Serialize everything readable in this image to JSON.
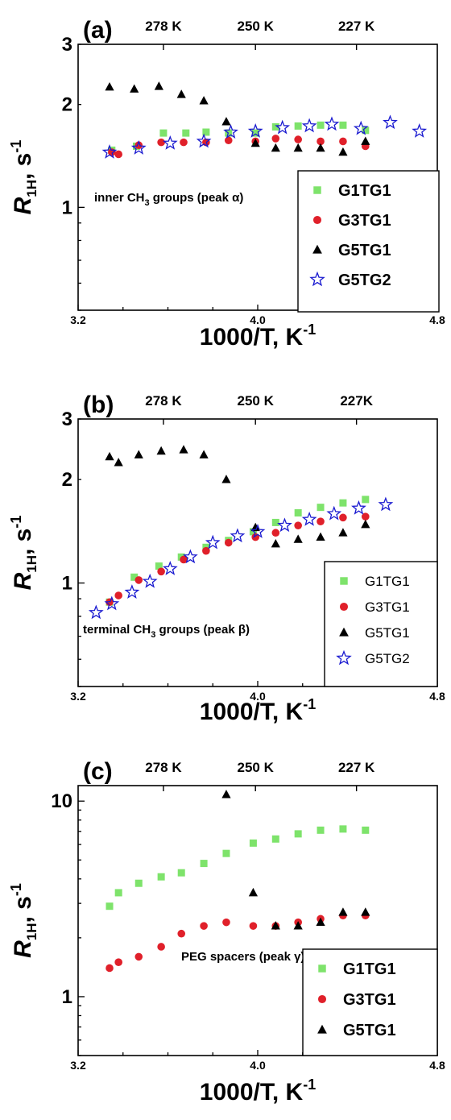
{
  "chart_data": [
    {
      "type": "scatter",
      "panel_label": "(a)",
      "top_ticks": [
        "278 K",
        "250 K",
        "227 K"
      ],
      "xlabel_main": "1000/T, K",
      "xlabel_sup": "-1",
      "ylabel_main": "R",
      "ylabel_sub": "1H",
      "ylabel_unit": ", s",
      "ylabel_sup": "-1",
      "xlim": [
        3.2,
        4.8
      ],
      "ylim": [
        0.5,
        3
      ],
      "yscale": "log",
      "xtick_labels": [
        "3.2",
        "4.0",
        "4.8"
      ],
      "ytick_labels": [
        "1",
        "2",
        "3"
      ],
      "annotation": "inner CH3 groups (peak α)",
      "annotation_pre": "inner CH",
      "annotation_sub": "3",
      "annotation_post": " groups (peak α)",
      "legend_position": "bottom-right",
      "series": [
        {
          "name": "G1TG1",
          "x": [
            3.35,
            3.46,
            3.58,
            3.68,
            3.77,
            3.87,
            3.99,
            4.08,
            4.18,
            4.28,
            4.38,
            4.48
          ],
          "y": [
            1.47,
            1.51,
            1.65,
            1.65,
            1.66,
            1.65,
            1.65,
            1.72,
            1.73,
            1.74,
            1.74,
            1.68
          ]
        },
        {
          "name": "G3TG1",
          "x": [
            3.35,
            3.38,
            3.47,
            3.57,
            3.67,
            3.77,
            3.87,
            3.99,
            4.08,
            4.18,
            4.28,
            4.38,
            4.48
          ],
          "y": [
            1.45,
            1.43,
            1.52,
            1.55,
            1.55,
            1.55,
            1.57,
            1.56,
            1.59,
            1.58,
            1.56,
            1.56,
            1.51
          ]
        },
        {
          "name": "G5TG1",
          "x": [
            3.34,
            3.45,
            3.56,
            3.66,
            3.76,
            3.86,
            3.99,
            4.08,
            4.18,
            4.28,
            4.38,
            4.48
          ],
          "y": [
            2.25,
            2.22,
            2.26,
            2.14,
            2.05,
            1.78,
            1.54,
            1.49,
            1.49,
            1.49,
            1.45,
            1.56
          ]
        },
        {
          "name": "G5TG2",
          "x": [
            3.34,
            3.47,
            3.61,
            3.76,
            3.88,
            3.99,
            4.11,
            4.23,
            4.33,
            4.46,
            4.59,
            4.72
          ],
          "y": [
            1.45,
            1.49,
            1.54,
            1.56,
            1.66,
            1.67,
            1.71,
            1.73,
            1.75,
            1.7,
            1.77,
            1.67
          ]
        }
      ]
    },
    {
      "type": "scatter",
      "panel_label": "(b)",
      "top_ticks": [
        "278 K",
        "250 K",
        "227K"
      ],
      "xlabel_main": "1000/T, K",
      "xlabel_sup": "-1",
      "ylabel_main": "R",
      "ylabel_sub": "1H",
      "ylabel_unit": ", s",
      "ylabel_sup": "-1",
      "xlim": [
        3.2,
        4.8
      ],
      "ylim": [
        0.5,
        3
      ],
      "yscale": "log",
      "xtick_labels": [
        "3.2",
        "4.0",
        "4.8"
      ],
      "ytick_labels": [
        "1",
        "2",
        "3"
      ],
      "annotation": "terminal CH3 groups (peak β)",
      "annotation_pre": "terminal CH",
      "annotation_sub": "3",
      "annotation_post": " groups (peak β)",
      "legend_position": "bottom-right",
      "series": [
        {
          "name": "G1TG1",
          "x": [
            3.34,
            3.45,
            3.56,
            3.66,
            3.77,
            3.87,
            3.98,
            4.08,
            4.18,
            4.28,
            4.38,
            4.48
          ],
          "y": [
            0.88,
            1.04,
            1.12,
            1.19,
            1.27,
            1.33,
            1.41,
            1.5,
            1.6,
            1.66,
            1.71,
            1.75
          ]
        },
        {
          "name": "G3TG1",
          "x": [
            3.34,
            3.38,
            3.47,
            3.57,
            3.67,
            3.77,
            3.87,
            3.99,
            4.08,
            4.18,
            4.28,
            4.38,
            4.48
          ],
          "y": [
            0.88,
            0.92,
            1.02,
            1.08,
            1.17,
            1.24,
            1.31,
            1.36,
            1.4,
            1.47,
            1.51,
            1.55,
            1.56
          ]
        },
        {
          "name": "G5TG1",
          "x": [
            3.34,
            3.38,
            3.47,
            3.57,
            3.67,
            3.76,
            3.86,
            3.99,
            4.08,
            4.18,
            4.28,
            4.38,
            4.48
          ],
          "y": [
            2.33,
            2.24,
            2.36,
            2.42,
            2.44,
            2.36,
            2.0,
            1.45,
            1.3,
            1.34,
            1.36,
            1.4,
            1.48
          ]
        },
        {
          "name": "G5TG2",
          "x": [
            3.28,
            3.35,
            3.44,
            3.52,
            3.61,
            3.7,
            3.8,
            3.91,
            4.0,
            4.12,
            4.23,
            4.34,
            4.45,
            4.57
          ],
          "y": [
            0.82,
            0.87,
            0.94,
            1.01,
            1.1,
            1.19,
            1.31,
            1.37,
            1.41,
            1.47,
            1.53,
            1.59,
            1.65,
            1.69
          ]
        }
      ]
    },
    {
      "type": "scatter",
      "panel_label": "(c)",
      "top_ticks": [
        "278 K",
        "250 K",
        "227 K"
      ],
      "xlabel_main": "1000/T, K",
      "xlabel_sup": "-1",
      "ylabel_main": "R",
      "ylabel_sub": "1H",
      "ylabel_unit": ", s",
      "ylabel_sup": "-1",
      "xlim": [
        3.2,
        4.8
      ],
      "ylim": [
        0.5,
        12
      ],
      "yscale": "log",
      "xtick_labels": [
        "3.2",
        "4.0",
        "4.8"
      ],
      "ytick_labels": [
        "1",
        "10"
      ],
      "annotation": "PEG spacers (peak γ)",
      "annotation_pre": "PEG spacers (peak γ)",
      "annotation_sub": "",
      "annotation_post": "",
      "legend_position": "bottom-right",
      "series": [
        {
          "name": "G1TG1",
          "x": [
            3.34,
            3.38,
            3.47,
            3.57,
            3.66,
            3.76,
            3.86,
            3.98,
            4.08,
            4.18,
            4.28,
            4.38,
            4.48
          ],
          "y": [
            2.9,
            3.4,
            3.8,
            4.1,
            4.3,
            4.8,
            5.4,
            6.1,
            6.4,
            6.8,
            7.1,
            7.2,
            7.1
          ]
        },
        {
          "name": "G3TG1",
          "x": [
            3.34,
            3.38,
            3.47,
            3.57,
            3.66,
            3.76,
            3.86,
            3.98,
            4.08,
            4.18,
            4.28,
            4.38,
            4.48
          ],
          "y": [
            1.4,
            1.5,
            1.6,
            1.8,
            2.1,
            2.3,
            2.4,
            2.3,
            2.3,
            2.4,
            2.5,
            2.6,
            2.6
          ]
        },
        {
          "name": "G5TG1",
          "x": [
            3.86,
            3.98,
            4.08,
            4.18,
            4.28,
            4.38,
            4.48
          ],
          "y": [
            10.8,
            3.4,
            2.3,
            2.3,
            2.4,
            2.7,
            2.7
          ]
        }
      ]
    }
  ],
  "colors": {
    "G1TG1": "#7ee36b",
    "G3TG1": "#e0202a",
    "G5TG1": "#000000",
    "G5TG2": "#1a1ad0"
  },
  "markers": {
    "G1TG1": "square",
    "G3TG1": "circle",
    "G5TG1": "triangle",
    "G5TG2": "star-open"
  }
}
